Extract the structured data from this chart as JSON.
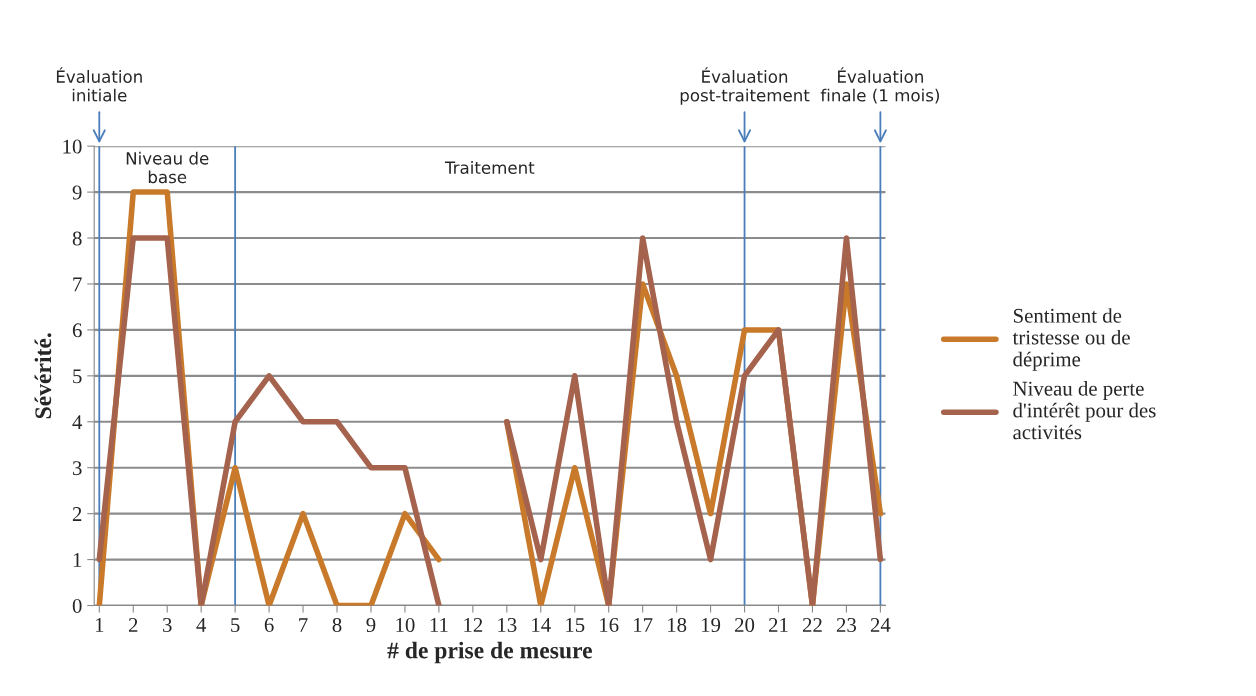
{
  "chart_data": {
    "type": "line",
    "xlabel": "# de prise de mesure",
    "ylabel": "Sévérité.",
    "categories": [
      "1",
      "2",
      "3",
      "4",
      "5",
      "6",
      "7",
      "8",
      "9",
      "10",
      "11",
      "12",
      "13",
      "14",
      "15",
      "16",
      "17",
      "18",
      "19",
      "20",
      "21",
      "22",
      "23",
      "24"
    ],
    "series": [
      {
        "name": "Sentiment de tristesse ou de déprime",
        "color": "#c8792a",
        "values": [
          0,
          9,
          9,
          0,
          3,
          0,
          2,
          0,
          0,
          2,
          1,
          null,
          4,
          0,
          3,
          0,
          7,
          5,
          2,
          6,
          6,
          0,
          7,
          2
        ]
      },
      {
        "name": "Niveau de perte d'intérêt pour des activités",
        "color": "#a5624c",
        "values": [
          1,
          8,
          8,
          0,
          4,
          5,
          4,
          4,
          3,
          3,
          0,
          null,
          4,
          1,
          5,
          0,
          8,
          4,
          1,
          5,
          6,
          0,
          8,
          1
        ]
      }
    ],
    "ylim": [
      0,
      10
    ],
    "yticks": [
      0,
      1,
      2,
      3,
      4,
      5,
      6,
      7,
      8,
      9,
      10
    ],
    "grid": "y",
    "legend": "right",
    "marker": "none",
    "line_style": "solid",
    "ref_lines": [
      {
        "axis": "x",
        "value": "1",
        "label": "Évaluation initiale",
        "color": "#4a7ebb"
      },
      {
        "axis": "x",
        "value": "5",
        "color": "#4a7ebb"
      },
      {
        "axis": "x",
        "value": "20",
        "label": "Évaluation post-traitement",
        "color": "#4a7ebb"
      },
      {
        "axis": "x",
        "value": "24",
        "label": "Évaluation finale (1 mois)",
        "color": "#4a7ebb"
      }
    ],
    "annotations": [
      "Niveau de base",
      "Traitement"
    ]
  }
}
